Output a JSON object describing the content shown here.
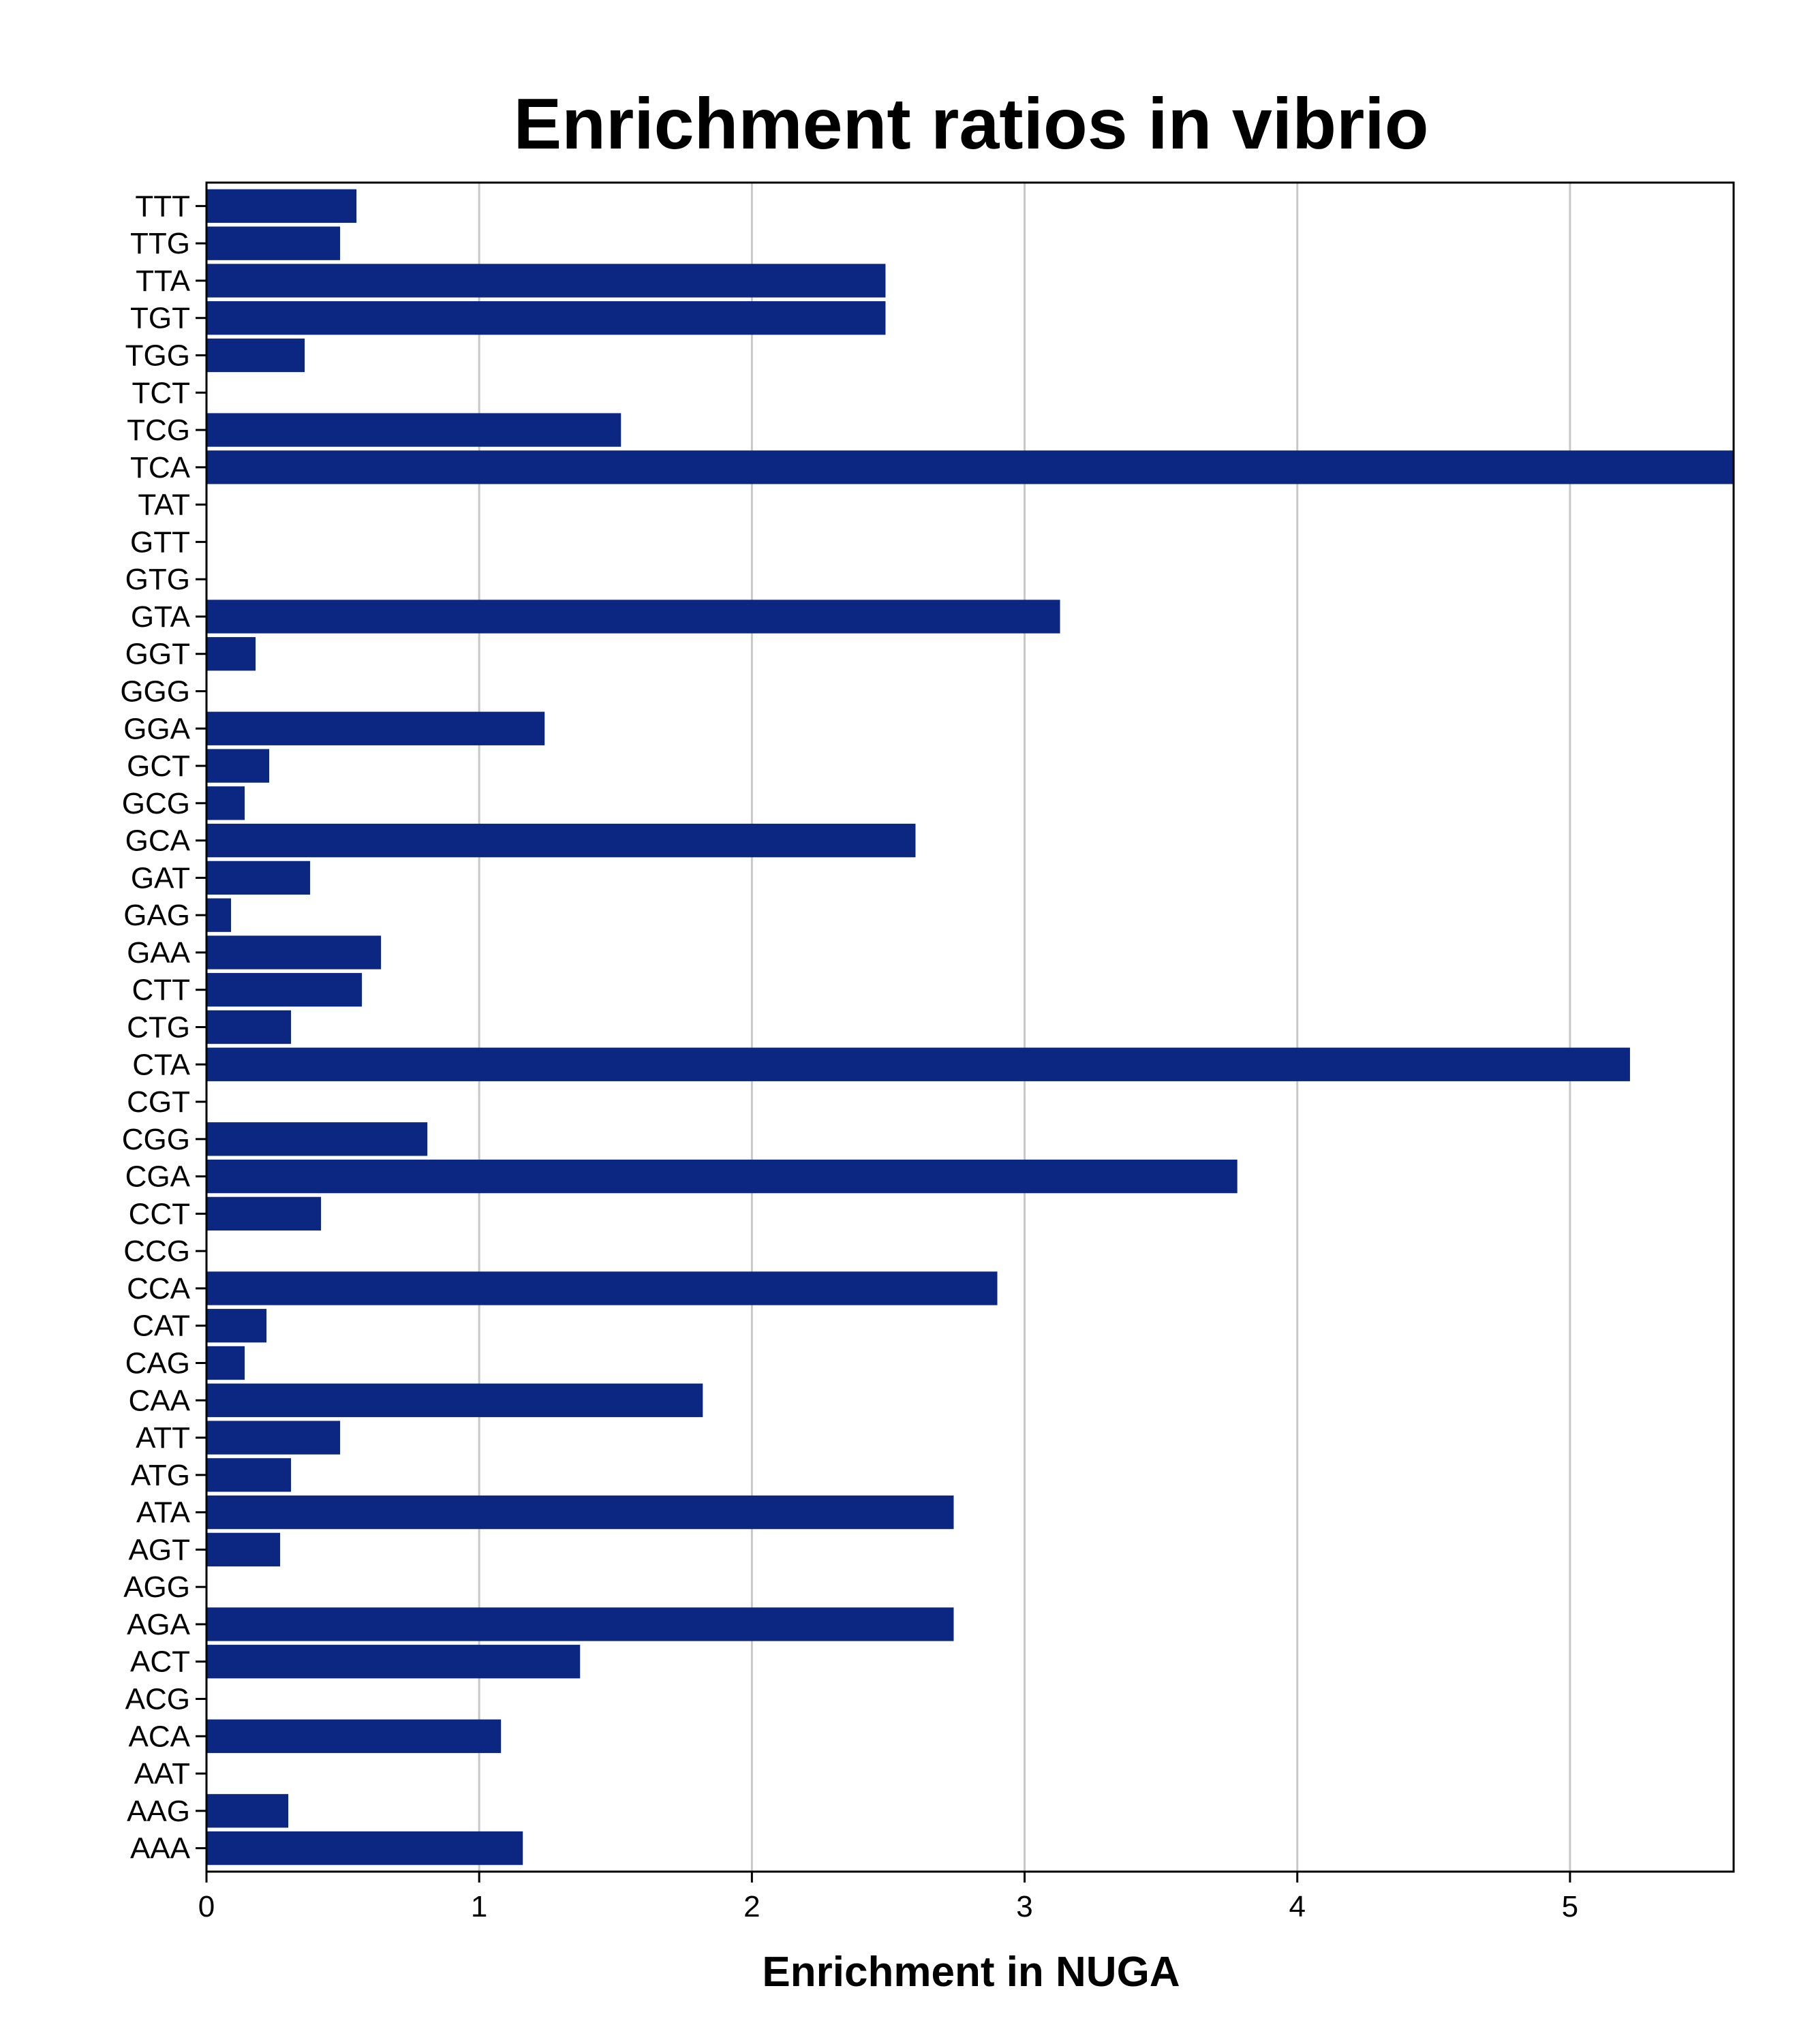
{
  "chart_data": {
    "type": "bar",
    "orientation": "horizontal",
    "title": "Enrichment ratios in vibrio",
    "xlabel": "Enrichment in NUGA",
    "ylabel": "",
    "xlim": [
      0,
      5.6
    ],
    "xticks": [
      "0",
      "1",
      "2",
      "3",
      "4",
      "5"
    ],
    "grid": "vertical",
    "bar_color": "#0b2781",
    "categories": [
      "TTT",
      "TTG",
      "TTA",
      "TGT",
      "TGG",
      "TCT",
      "TCG",
      "TCA",
      "TAT",
      "GTT",
      "GTG",
      "GTA",
      "GGT",
      "GGG",
      "GGA",
      "GCT",
      "GCG",
      "GCA",
      "GAT",
      "GAG",
      "GAA",
      "CTT",
      "CTG",
      "CTA",
      "CGT",
      "CGG",
      "CGA",
      "CCT",
      "CCG",
      "CCA",
      "CAT",
      "CAG",
      "CAA",
      "ATT",
      "ATG",
      "ATA",
      "AGT",
      "AGG",
      "AGA",
      "ACT",
      "ACG",
      "ACA",
      "AAT",
      "AAG",
      "AAA"
    ],
    "values": [
      0.55,
      0.49,
      2.49,
      2.49,
      0.36,
      0,
      1.52,
      5.6,
      0,
      0,
      0,
      3.13,
      0.18,
      0,
      1.24,
      0.23,
      0.14,
      2.6,
      0.38,
      0.09,
      0.64,
      0.57,
      0.31,
      5.22,
      0,
      0.81,
      3.78,
      0.42,
      0,
      2.9,
      0.22,
      0.14,
      1.82,
      0.49,
      0.31,
      2.74,
      0.27,
      0,
      2.74,
      1.37,
      0,
      1.08,
      0,
      0.3,
      1.16
    ]
  }
}
